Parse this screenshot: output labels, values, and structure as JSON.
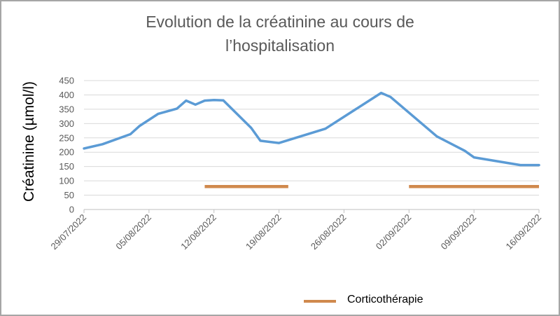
{
  "chart_data": {
    "type": "line",
    "title_line1": "Evolution de la créatinine au cours de",
    "title_line2": "l’hospitalisation",
    "xlabel": "",
    "ylabel": "Créatinine (µmol/l)",
    "ylim": [
      0,
      450
    ],
    "yticks": [
      0,
      50,
      100,
      150,
      200,
      250,
      300,
      350,
      400,
      450
    ],
    "xlim": [
      "2022-07-29",
      "2022-09-16"
    ],
    "xticks": [
      "29/07/2022",
      "05/08/2022",
      "12/08/2022",
      "19/08/2022",
      "26/08/2022",
      "02/09/2022",
      "09/09/2022",
      "16/09/2022"
    ],
    "xtick_dates": [
      "2022-07-29",
      "2022-08-05",
      "2022-08-12",
      "2022-08-19",
      "2022-08-26",
      "2022-09-02",
      "2022-09-09",
      "2022-09-16"
    ],
    "grid": true,
    "legend_position": "bottom",
    "series": [
      {
        "color": "#5b9bd5",
        "x": [
          "2022-07-29",
          "2022-07-31",
          "2022-08-03",
          "2022-08-04",
          "2022-08-06",
          "2022-08-08",
          "2022-08-09",
          "2022-08-10",
          "2022-08-11",
          "2022-08-12",
          "2022-08-13",
          "2022-08-16",
          "2022-08-17",
          "2022-08-19",
          "2022-08-24",
          "2022-08-30",
          "2022-08-31",
          "2022-09-05",
          "2022-09-08",
          "2022-09-09",
          "2022-09-14",
          "2022-09-16"
        ],
        "values": [
          213,
          228,
          263,
          292,
          334,
          352,
          380,
          366,
          380,
          382,
          381,
          285,
          240,
          232,
          282,
          407,
          393,
          255,
          205,
          182,
          155,
          155
        ]
      },
      {
        "name": "Corticothérapie",
        "color": "#d0894d",
        "segments": [
          {
            "start": "2022-08-11",
            "end": "2022-08-20",
            "value": 80
          },
          {
            "start": "2022-09-02",
            "end": "2022-09-16",
            "value": 80
          }
        ]
      }
    ]
  }
}
